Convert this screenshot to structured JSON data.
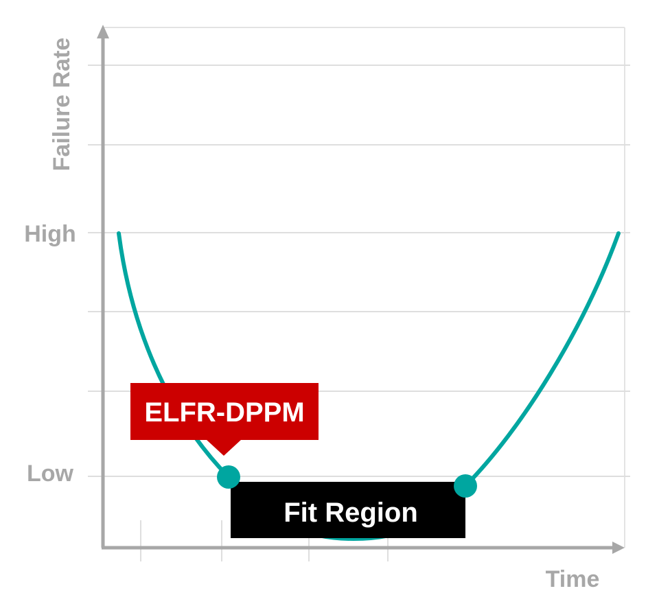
{
  "diagram": {
    "y_axis_label": "Failure Rate",
    "x_axis_label": "Time",
    "level_labels": {
      "high": "High",
      "low": "Low"
    },
    "elfr_label": "ELFR-DPPM",
    "fit_label": "Fit Region",
    "colors": {
      "curve": "#00a6a0",
      "elfr_box": "#cc0000",
      "fit_box": "#000000",
      "axis": "#a7a7a7",
      "grid": "#dddddd"
    }
  }
}
